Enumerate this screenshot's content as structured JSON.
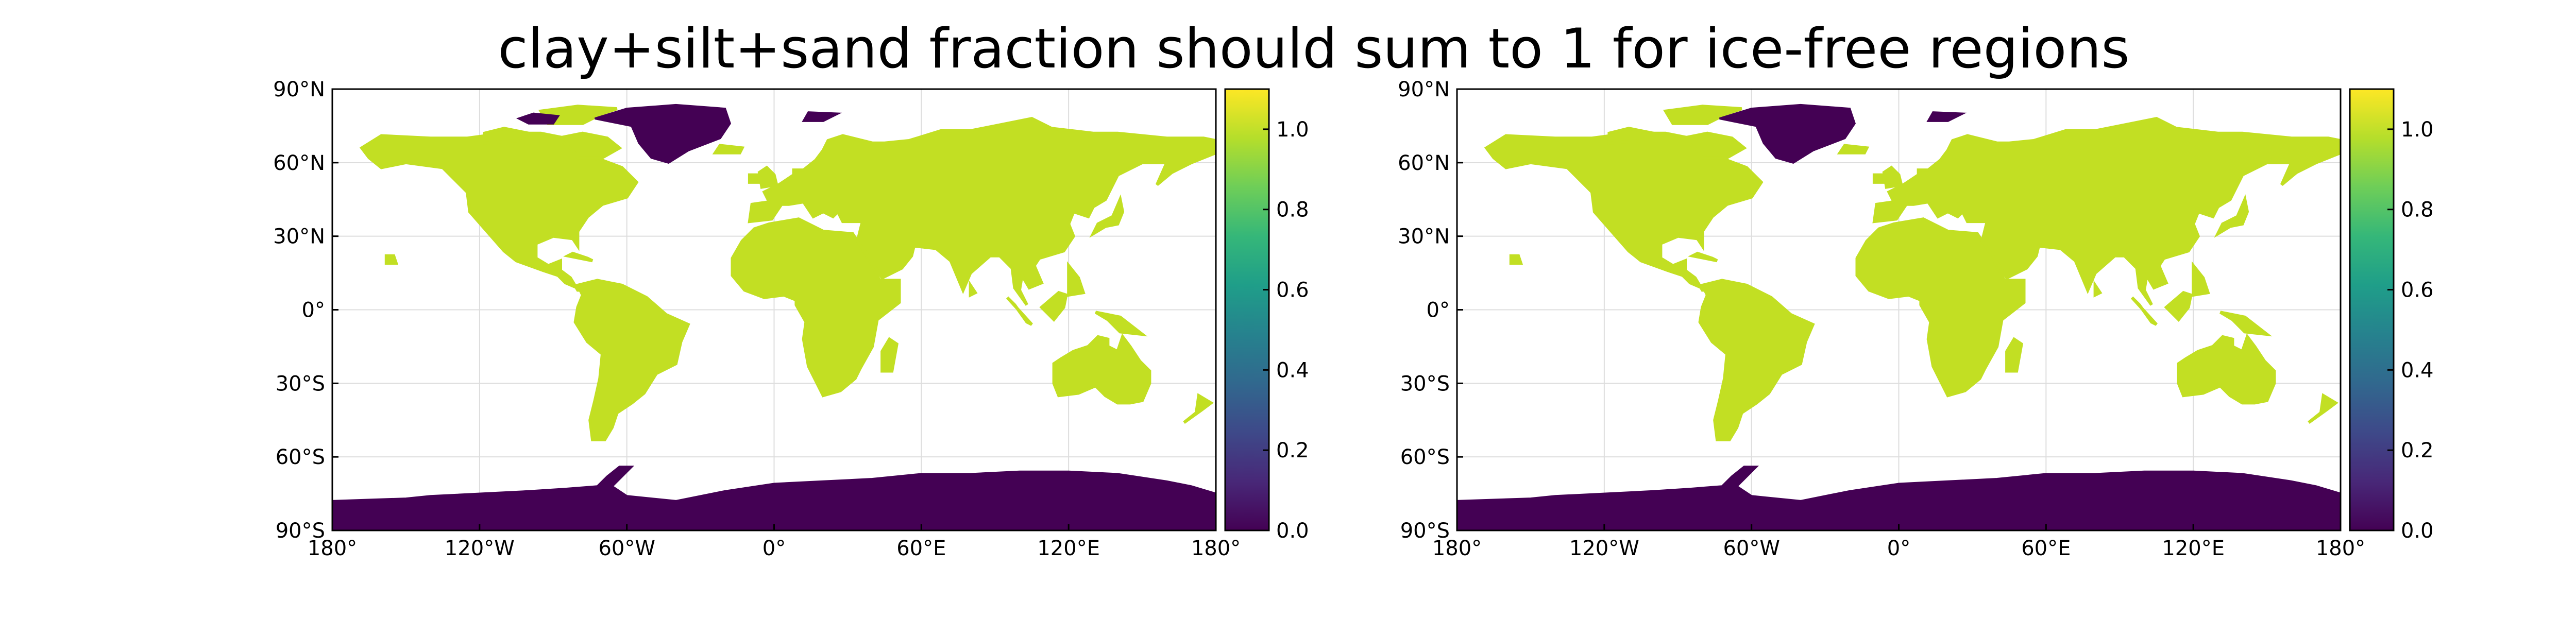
{
  "figure": {
    "title": "clay+silt+sand fraction should sum to 1 for ice-free regions"
  },
  "axes": {
    "lat_ticks": [
      "90°N",
      "60°N",
      "30°N",
      "0°",
      "30°S",
      "60°S",
      "90°S"
    ],
    "lon_ticks": [
      "180°",
      "120°W",
      "60°W",
      "0°",
      "60°E",
      "120°E",
      "180°"
    ],
    "lat_values": [
      90,
      60,
      30,
      0,
      -30,
      -60,
      -90
    ],
    "lon_values": [
      -180,
      -120,
      -60,
      0,
      60,
      120,
      180
    ]
  },
  "colorbar": {
    "ticks": [
      "0.0",
      "0.2",
      "0.4",
      "0.6",
      "0.8",
      "1.0"
    ],
    "tick_values": [
      0.0,
      0.2,
      0.4,
      0.6,
      0.8,
      1.0
    ],
    "range": [
      0.0,
      1.1
    ],
    "colormap": "viridis",
    "colors": [
      "#440154",
      "#482878",
      "#3e4989",
      "#31688e",
      "#26828e",
      "#1f9e89",
      "#35b779",
      "#6ece58",
      "#b5de2b",
      "#fde725"
    ]
  },
  "colors": {
    "land_value_color": "#c2df23",
    "ice_value_color": "#440154",
    "grid": "#dddddd"
  },
  "chart_data": [
    {
      "type": "heatmap",
      "panel": "left",
      "xlim": [
        -180,
        180
      ],
      "ylim": [
        -90,
        90
      ],
      "colorbar_range": [
        0.0,
        1.1
      ],
      "land_value": 1.0,
      "ice_value": 0.0,
      "grid": true,
      "ice_regions": [
        "Greenland",
        "Antarctica",
        "Svalbard",
        "Canadian Arctic islands (part)"
      ]
    },
    {
      "type": "heatmap",
      "panel": "right",
      "xlim": [
        -180,
        180
      ],
      "ylim": [
        -90,
        90
      ],
      "colorbar_range": [
        0.0,
        1.1
      ],
      "land_value": 1.0,
      "ice_value": 0.0,
      "grid": true,
      "ice_regions": [
        "Greenland",
        "Antarctica",
        "Svalbard",
        "Canadian Arctic islands (part)"
      ]
    }
  ]
}
